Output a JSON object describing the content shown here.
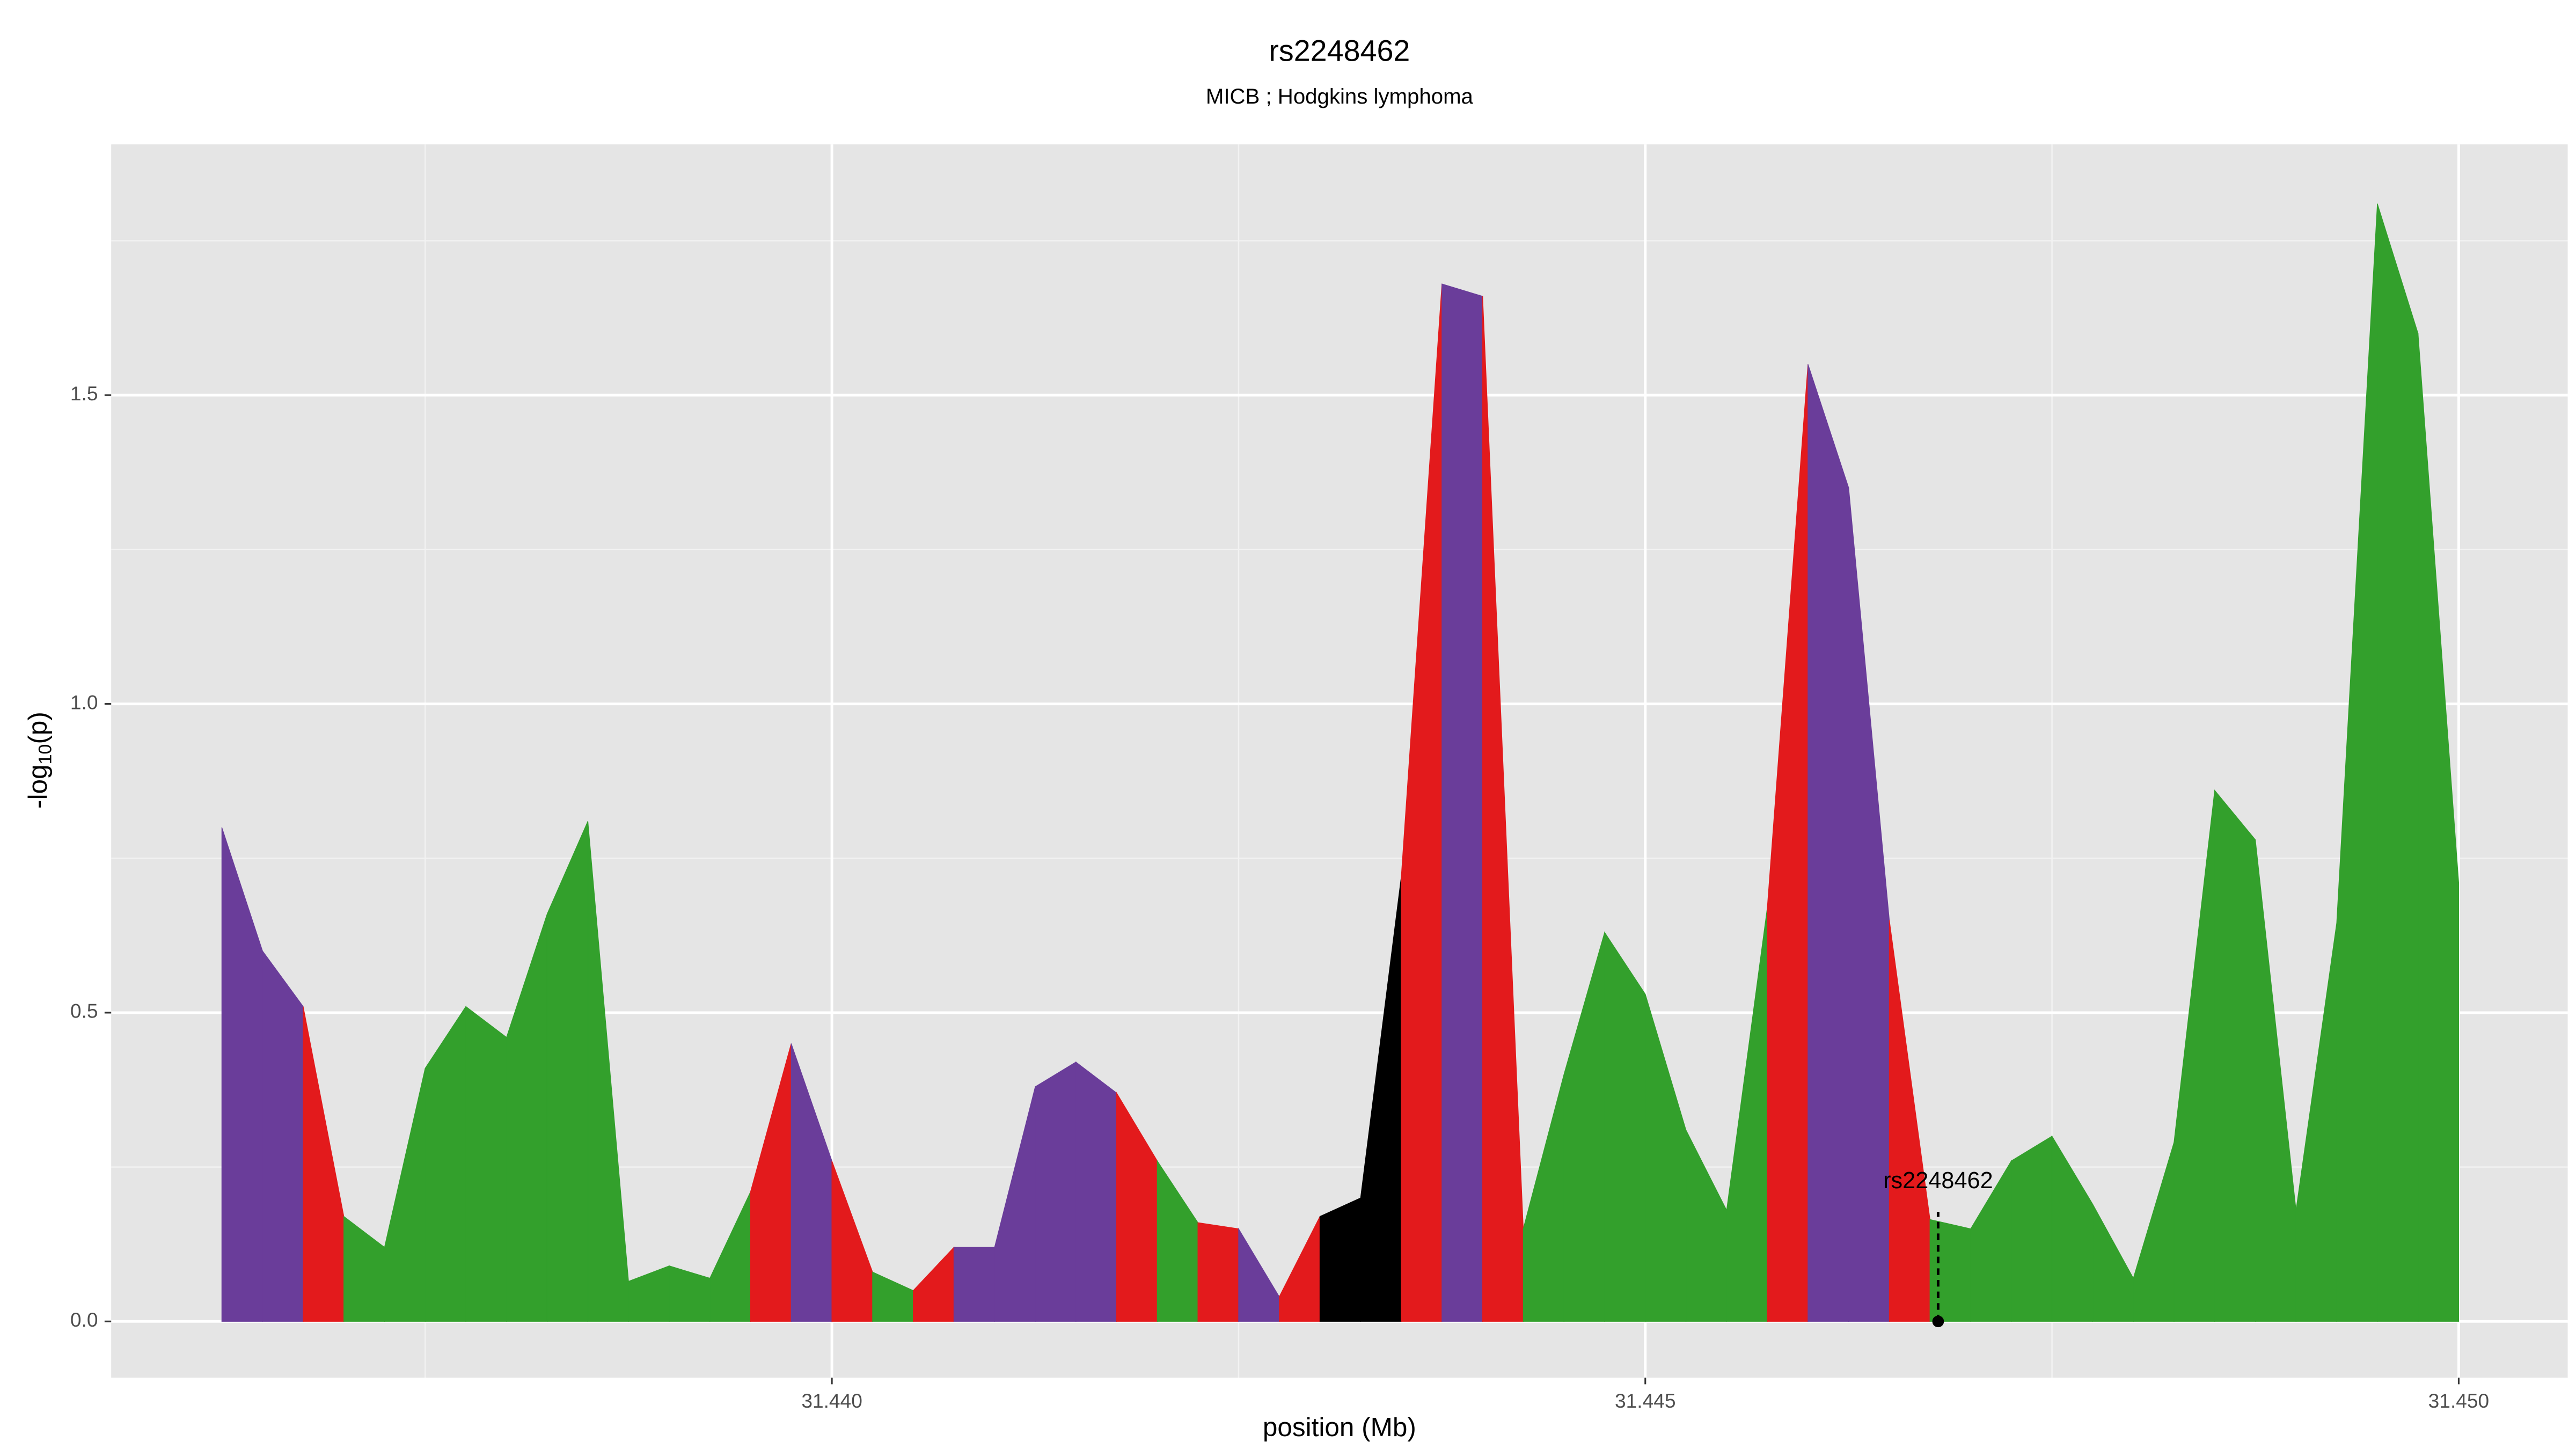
{
  "chart_data": {
    "type": "segmented-area",
    "title": "rs2248462",
    "subtitle": "MICB ; Hodgkins lymphoma",
    "x_label": "position (Mb)",
    "y_label_parts": [
      "-log",
      "10",
      "(p)"
    ],
    "x": [
      31.43625,
      31.4365,
      31.43675,
      31.437,
      31.43725,
      31.4375,
      31.43775,
      31.438,
      31.43825,
      31.4385,
      31.43875,
      31.439,
      31.43925,
      31.4395,
      31.43975,
      31.44,
      31.44025,
      31.4405,
      31.44075,
      31.441,
      31.44125,
      31.4415,
      31.44175,
      31.442,
      31.44225,
      31.4425,
      31.44275,
      31.443,
      31.44325,
      31.4435,
      31.44375,
      31.444,
      31.44425,
      31.4445,
      31.44475,
      31.445,
      31.44525,
      31.4455,
      31.44575,
      31.446,
      31.44625,
      31.4465,
      31.44675,
      31.447,
      31.44725,
      31.4475,
      31.44775,
      31.448,
      31.44825,
      31.4485,
      31.44875,
      31.449,
      31.44925,
      31.4495,
      31.44975,
      31.45
    ],
    "values": [
      0.8,
      0.6,
      0.51,
      0.17,
      0.12,
      0.41,
      0.51,
      0.46,
      0.66,
      0.81,
      0.065,
      0.09,
      0.07,
      0.21,
      0.45,
      0.26,
      0.08,
      0.05,
      0.12,
      0.12,
      0.38,
      0.42,
      0.37,
      0.26,
      0.16,
      0.15,
      0.04,
      0.17,
      0.2,
      0.72,
      1.68,
      1.66,
      0.15,
      0.4,
      0.63,
      0.53,
      0.31,
      0.18,
      0.67,
      1.55,
      1.35,
      0.65,
      0.165,
      0.15,
      0.26,
      0.3,
      0.19,
      0.07,
      0.29,
      0.86,
      0.78,
      0.18,
      0.645,
      1.81,
      1.6,
      0.71
    ],
    "point_colors": [
      "#6a3d9a",
      "#6a3d9a",
      "#e31a1c",
      "#33a02c",
      "#33a02c",
      "#33a02c",
      "#33a02c",
      "#33a02c",
      "#33a02c",
      "#33a02c",
      "#33a02c",
      "#33a02c",
      "#33a02c",
      "#e31a1c",
      "#6a3d9a",
      "#e31a1c",
      "#33a02c",
      "#e31a1c",
      "#6a3d9a",
      "#6a3d9a",
      "#6a3d9a",
      "#6a3d9a",
      "#e31a1c",
      "#33a02c",
      "#e31a1c",
      "#6a3d9a",
      "#e31a1c",
      "#000000",
      "#000000",
      "#e31a1c",
      "#6a3d9a",
      "#e31a1c",
      "#33a02c",
      "#33a02c",
      "#33a02c",
      "#33a02c",
      "#33a02c",
      "#33a02c",
      "#e31a1c",
      "#6a3d9a",
      "#6a3d9a",
      "#e31a1c",
      "#33a02c",
      "#33a02c",
      "#33a02c",
      "#33a02c",
      "#33a02c",
      "#33a02c",
      "#33a02c",
      "#33a02c",
      "#33a02c",
      "#33a02c",
      "#33a02c",
      "#33a02c",
      "#33a02c",
      "#33a02c"
    ],
    "highlight": {
      "label": "rs2248462",
      "x": 31.4468,
      "y": 0
    },
    "xlim": [
      31.43557,
      31.45067
    ],
    "ylim": [
      -0.091,
      1.906
    ],
    "xticks": [
      {
        "value": 31.44,
        "label": "31.440"
      },
      {
        "value": 31.445,
        "label": "31.445"
      },
      {
        "value": 31.45,
        "label": "31.450"
      }
    ],
    "x_minor_ticks": [
      31.4375,
      31.4425,
      31.4475
    ],
    "yticks": [
      {
        "value": 0,
        "label": "0.0"
      },
      0.5,
      {
        "value": 1,
        "label": "1.0"
      },
      1.5
    ],
    "y_minor_ticks": [
      0.25,
      0.75,
      1.25,
      1.75
    ],
    "grid": true
  }
}
